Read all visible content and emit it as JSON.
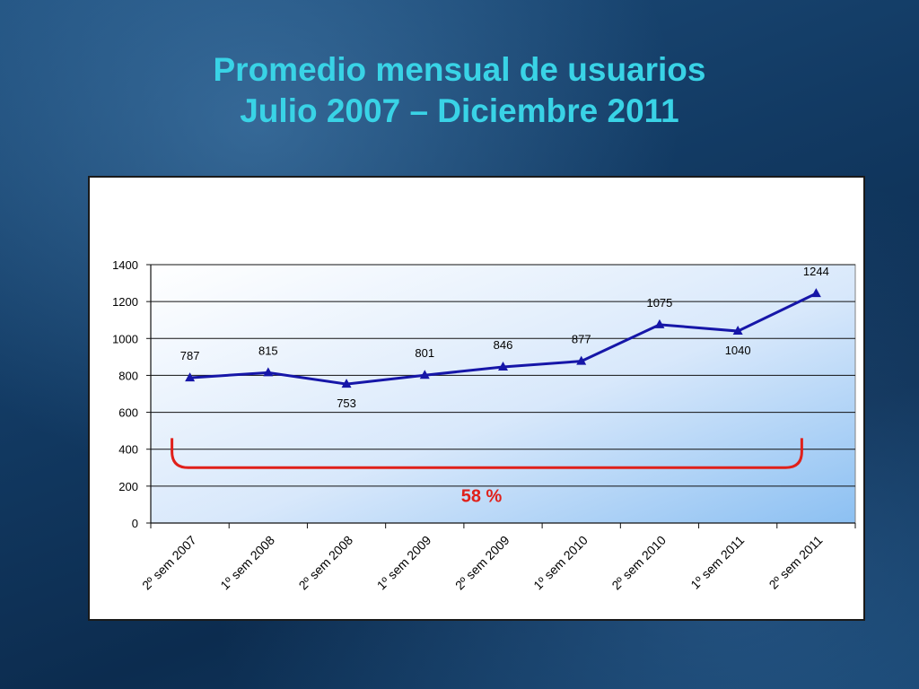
{
  "slide": {
    "title_line1": "Promedio mensual de usuarios",
    "title_line2": "Julio 2007 – Diciembre 2011"
  },
  "chart_data": {
    "type": "line",
    "categories": [
      "2º sem 2007",
      "1º sem 2008",
      "2º sem 2008",
      "1º sem 2009",
      "2º sem 2009",
      "1º sem 2010",
      "2º sem 2010",
      "1º sem 2011",
      "2º sem 2011"
    ],
    "series": [
      {
        "values": [
          787,
          815,
          753,
          801,
          846,
          877,
          1075,
          1040,
          1244
        ],
        "color": "#1616a8",
        "marker": "triangle"
      }
    ],
    "y_ticks": [
      "0",
      "200",
      "400",
      "600",
      "800",
      "1000",
      "1200",
      "1400"
    ],
    "ylim": [
      0,
      1400
    ],
    "grid": true,
    "legend": "none",
    "annotation": {
      "text": "58 %",
      "color": "#e0201a",
      "from_category": "2º sem 2007",
      "to_category": "2º sem 2011",
      "bracket_level": 300
    }
  }
}
